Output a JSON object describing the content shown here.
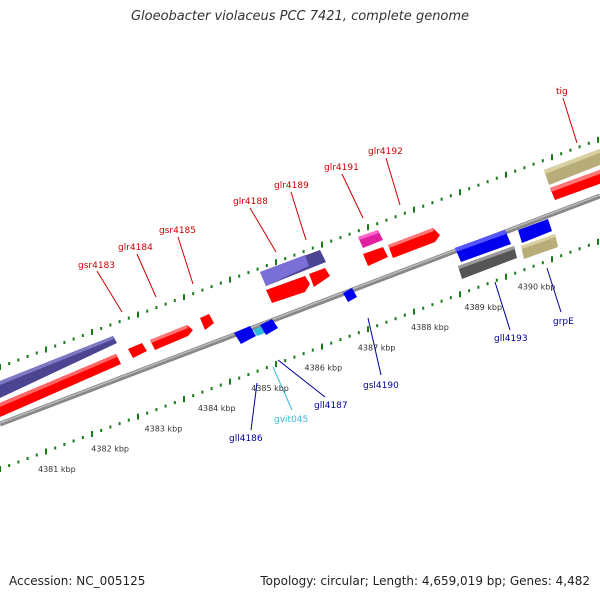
{
  "title": "Gloeobacter violaceus PCC 7421, complete genome",
  "footer": {
    "accession": "Accession: NC_005125",
    "stats": "Topology: circular; Length: 4,659,019 bp; Genes: 4,482"
  },
  "colors": {
    "forward_gene": "#ff0000",
    "reverse_gene": "#0000ff",
    "ruler_tick": "#1a7a1a",
    "backbone": "#888888",
    "forward_label": "#cc0000",
    "reverse_label": "#000099",
    "rna_label": "#33bbdd"
  },
  "scale_labels": [
    {
      "text": "4381 kbp",
      "pos": 4381
    },
    {
      "text": "4382 kbp",
      "pos": 4382
    },
    {
      "text": "4383 kbp",
      "pos": 4383
    },
    {
      "text": "4384 kbp",
      "pos": 4384
    },
    {
      "text": "4385 kbp",
      "pos": 4385
    },
    {
      "text": "4386 kbp",
      "pos": 4386
    },
    {
      "text": "4387 kbp",
      "pos": 4387
    },
    {
      "text": "4388 kbp",
      "pos": 4388
    },
    {
      "text": "4389 kbp",
      "pos": 4389
    },
    {
      "text": "4390 kbp",
      "pos": 4390
    }
  ],
  "genes_top": [
    {
      "label": "gsr4183"
    },
    {
      "label": "glr4184"
    },
    {
      "label": "gsr4185"
    },
    {
      "label": "glr4188"
    },
    {
      "label": "glr4189"
    },
    {
      "label": "glr4191"
    },
    {
      "label": "glr4192"
    },
    {
      "label": "tig"
    }
  ],
  "genes_bottom": [
    {
      "label": "gll4186"
    },
    {
      "label": "gvit045"
    },
    {
      "label": "gll4187"
    },
    {
      "label": "gsl4190"
    },
    {
      "label": "gll4193"
    },
    {
      "label": "grpE"
    }
  ]
}
